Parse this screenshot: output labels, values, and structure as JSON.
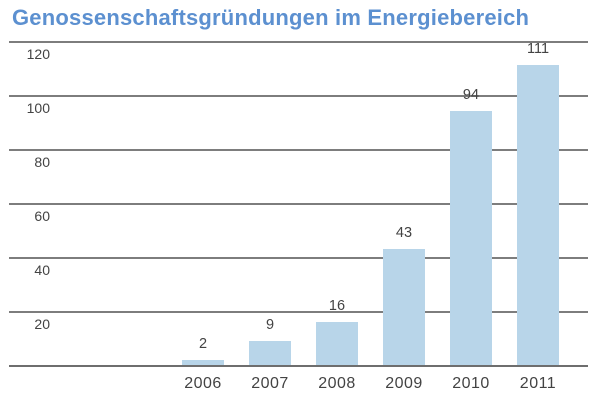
{
  "title": "Genossenschaftsgründungen im Energiebereich",
  "colors": {
    "title-color": "#5c90d0",
    "bar-color": "#b8d5e9",
    "grid-color": "#7d7d7d",
    "baseline-color": "#6e6e6e",
    "label-color": "#434343"
  },
  "chart_data": {
    "type": "bar",
    "title": "Genossenschaftsgründungen im Energiebereich",
    "categories": [
      "2006",
      "2007",
      "2008",
      "2009",
      "2010",
      "2011"
    ],
    "values": [
      2,
      9,
      16,
      43,
      94,
      111
    ],
    "bar_labels": [
      2,
      9,
      16,
      43,
      94,
      111
    ],
    "xlabel": "",
    "ylabel": "",
    "ylim": [
      0,
      120
    ],
    "yticks": [
      20,
      40,
      60,
      80,
      100,
      120
    ],
    "ytick_position": "below-line-left",
    "grid": "horizontal",
    "gridlines_behind_bars": true,
    "legend": false
  }
}
